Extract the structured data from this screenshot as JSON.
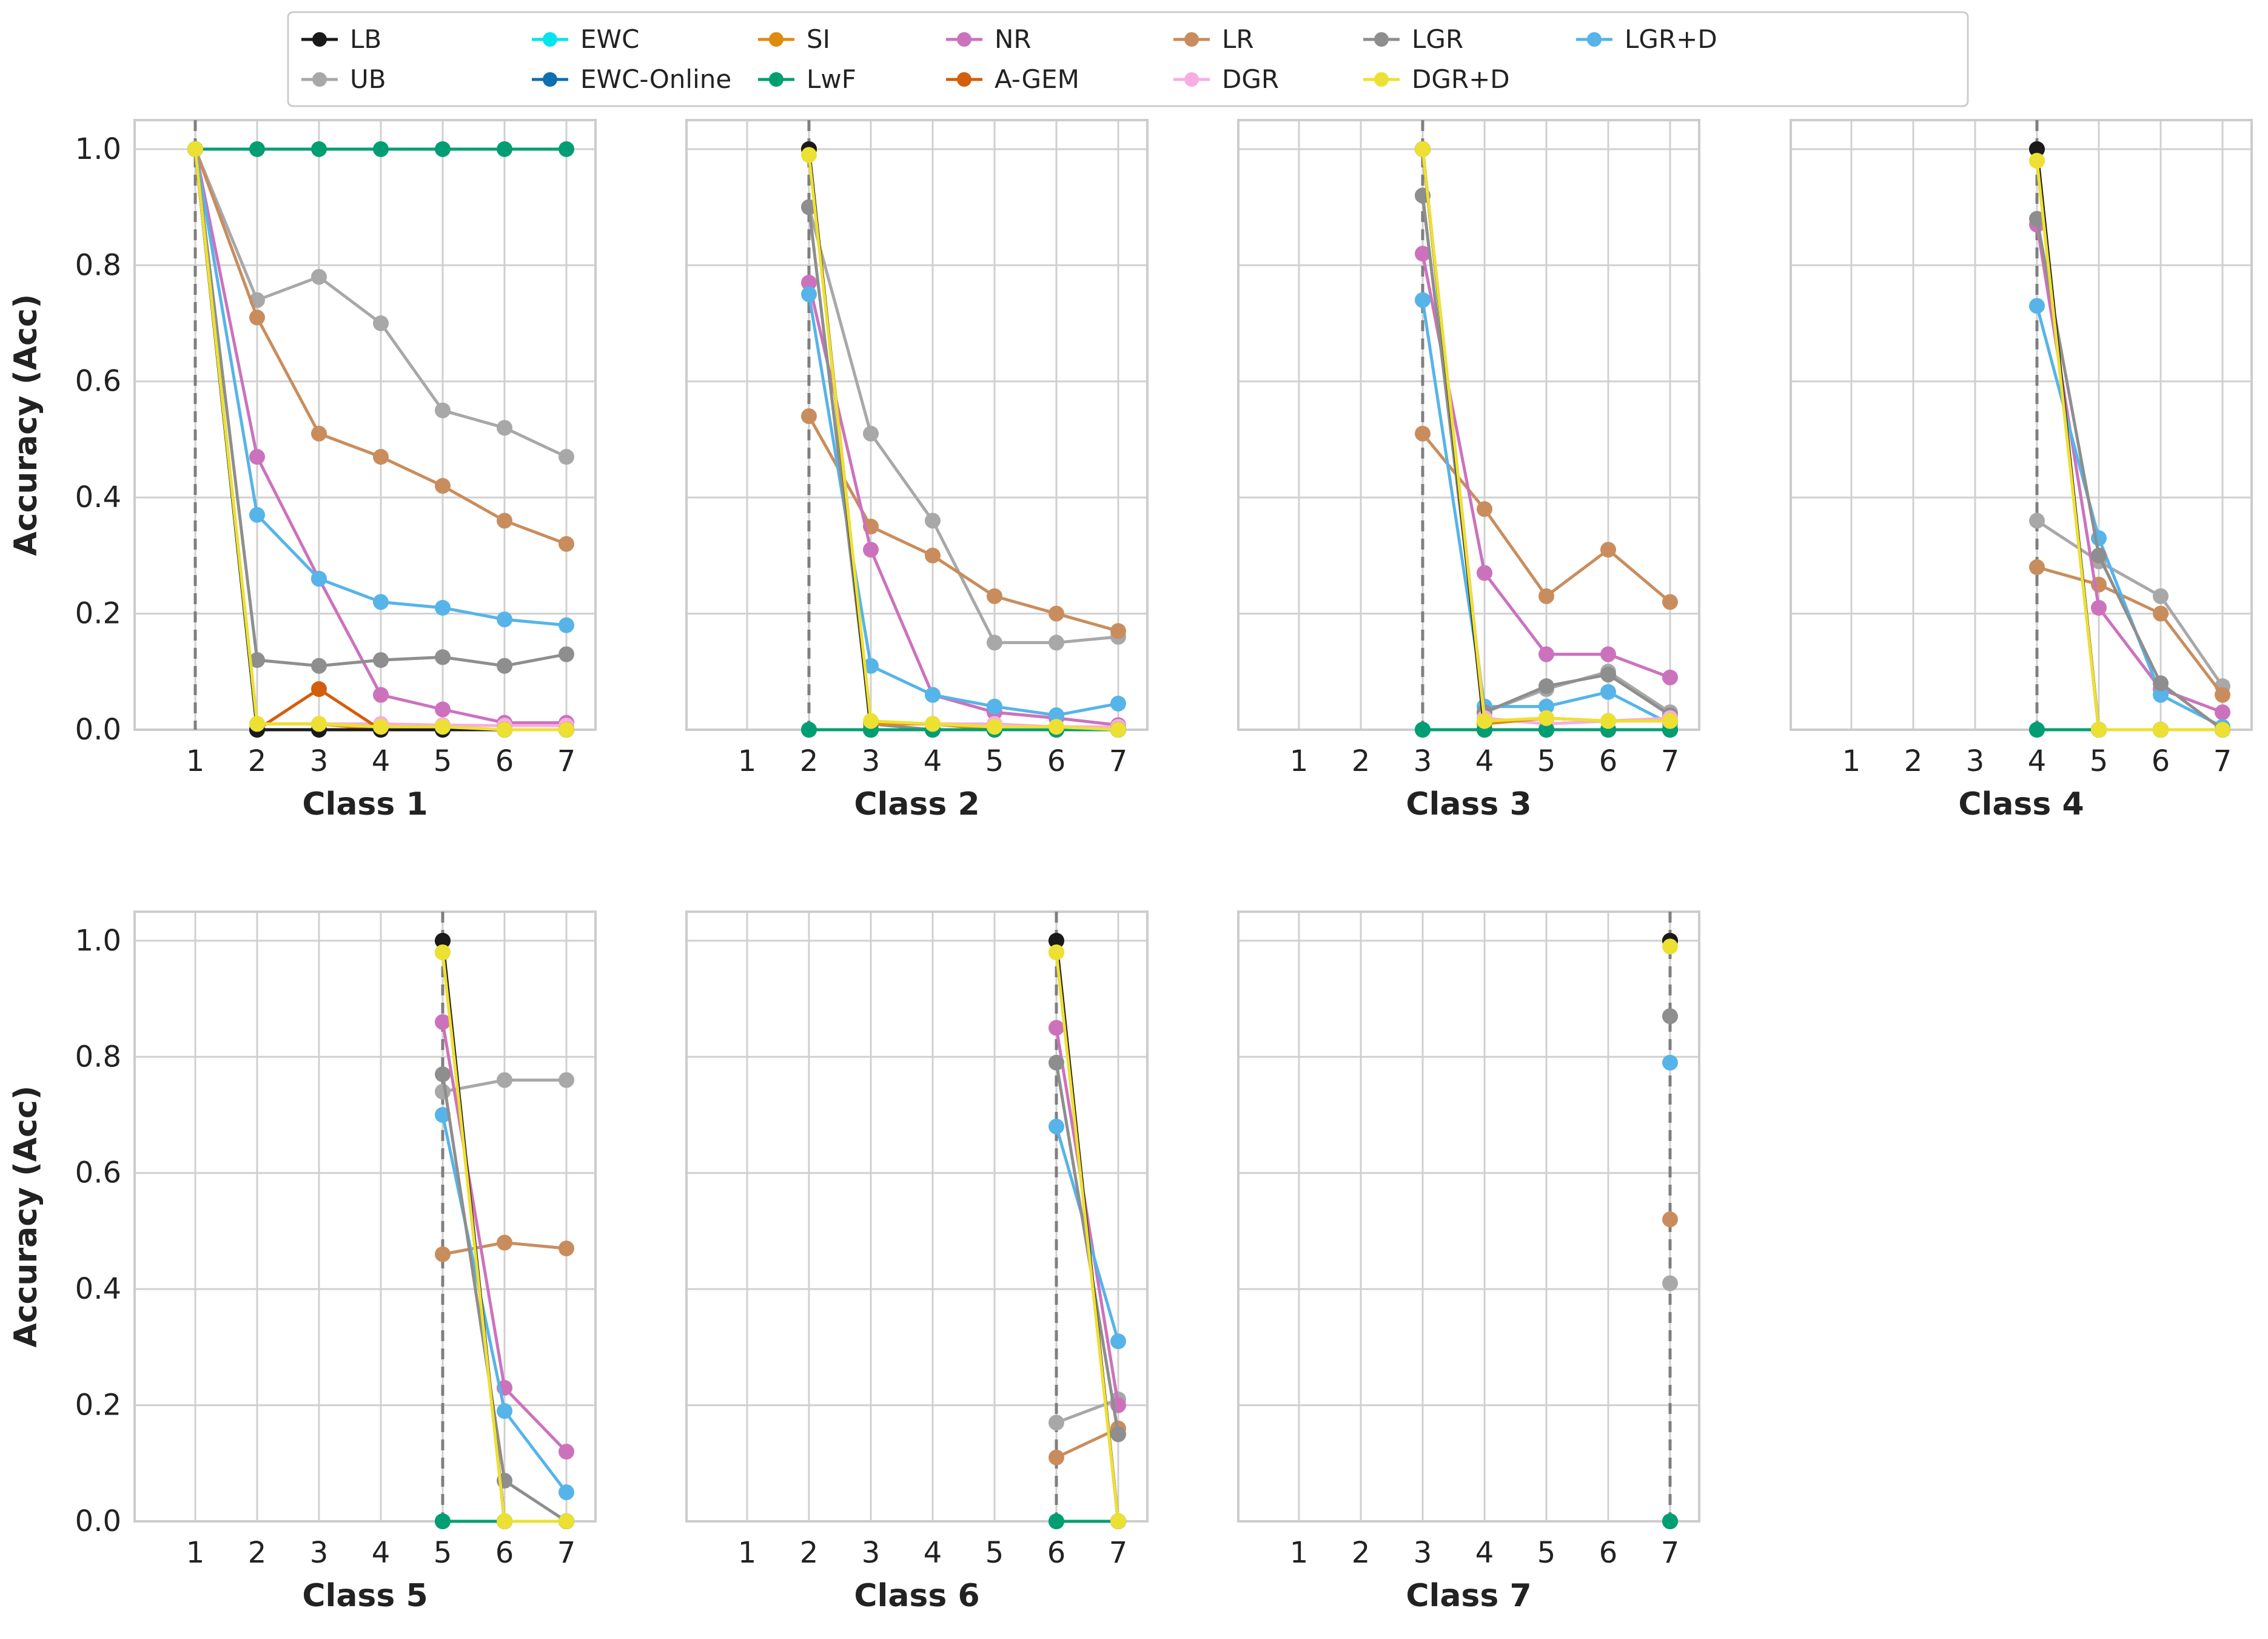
{
  "chart_data": {
    "type": "line",
    "x_ticks": [
      1,
      2,
      3,
      4,
      5,
      6,
      7
    ],
    "y_ticks": [
      "0.0",
      "0.2",
      "0.4",
      "0.6",
      "0.8",
      "1.0"
    ],
    "ylim": [
      0,
      1.05
    ],
    "ylabel": "Accuracy (Acc)",
    "grid": true,
    "legend_position": "top",
    "legend": [
      {
        "name": "LB",
        "color": "#1a1a1a"
      },
      {
        "name": "UB",
        "color": "#a8a8a8"
      },
      {
        "name": "EWC",
        "color": "#00e5ee"
      },
      {
        "name": "EWC-Online",
        "color": "#0f6fb0"
      },
      {
        "name": "SI",
        "color": "#de8c0f"
      },
      {
        "name": "LwF",
        "color": "#029e73"
      },
      {
        "name": "NR",
        "color": "#cc72bd"
      },
      {
        "name": "A-GEM",
        "color": "#d35e0d"
      },
      {
        "name": "LR",
        "color": "#c98d5d"
      },
      {
        "name": "DGR",
        "color": "#f6aee2"
      },
      {
        "name": "LGR",
        "color": "#8e8e8e"
      },
      {
        "name": "DGR+D",
        "color": "#ece133"
      },
      {
        "name": "LGR+D",
        "color": "#56b4e9"
      }
    ],
    "panels": [
      {
        "xlabel": "Class 1",
        "start": 1,
        "series": {
          "LB": [
            1.0,
            0.0,
            0.0,
            0.0,
            0.0,
            0.0,
            0.0
          ],
          "UB": [
            1.0,
            0.74,
            0.78,
            0.7,
            0.55,
            0.52,
            0.47
          ],
          "EWC": [
            1.0,
            0.0,
            0.0,
            0.0,
            0.0,
            0.0,
            0.0
          ],
          "EWC-Online": [
            1.0,
            0.0,
            0.0,
            0.0,
            0.0,
            0.0,
            0.0
          ],
          "SI": [
            1.0,
            0.01,
            0.01,
            0.0,
            0.0,
            0.0,
            0.0
          ],
          "LwF": [
            1.0,
            1.0,
            1.0,
            1.0,
            1.0,
            1.0,
            1.0
          ],
          "NR": [
            1.0,
            0.47,
            0.26,
            0.06,
            0.035,
            0.012,
            0.012
          ],
          "A-GEM": [
            1.0,
            0.0,
            0.07,
            0.0,
            0.0,
            0.0,
            0.0
          ],
          "LR": [
            1.0,
            0.71,
            0.51,
            0.47,
            0.42,
            0.36,
            0.32
          ],
          "DGR": [
            1.0,
            0.01,
            0.01,
            0.01,
            0.008,
            0.007,
            0.007
          ],
          "LGR": [
            1.0,
            0.12,
            0.11,
            0.12,
            0.125,
            0.11,
            0.13
          ],
          "DGR+D": [
            1.0,
            0.01,
            0.01,
            0.005,
            0.005,
            0.0,
            0.0
          ],
          "LGR+D": [
            1.0,
            0.37,
            0.26,
            0.22,
            0.21,
            0.19,
            0.18
          ]
        }
      },
      {
        "xlabel": "Class 2",
        "start": 2,
        "series": {
          "LB": [
            1.0,
            0.0,
            0.0,
            0.0,
            0.0,
            0.0
          ],
          "UB": [
            0.9,
            0.51,
            0.36,
            0.15,
            0.15,
            0.16
          ],
          "EWC": [
            0.0,
            0.0,
            0.0,
            0.0,
            0.0,
            0.0
          ],
          "EWC-Online": [
            0.0,
            0.0,
            0.0,
            0.0,
            0.0,
            0.0
          ],
          "SI": [
            1.0,
            0.01,
            0.01,
            0.0,
            0.0,
            0.0
          ],
          "LwF": [
            0.0,
            0.0,
            0.0,
            0.0,
            0.0,
            0.0
          ],
          "NR": [
            0.77,
            0.31,
            0.06,
            0.03,
            0.02,
            0.008
          ],
          "A-GEM": [
            1.0,
            0.0,
            0.0,
            0.0,
            0.0,
            0.0
          ],
          "LR": [
            0.54,
            0.35,
            0.3,
            0.23,
            0.2,
            0.17
          ],
          "DGR": [
            1.0,
            0.01,
            0.01,
            0.01,
            0.005,
            0.005
          ],
          "LGR": [
            0.9,
            0.01,
            0.0,
            0.0,
            0.0,
            0.0
          ],
          "DGR+D": [
            0.99,
            0.015,
            0.01,
            0.005,
            0.005,
            0.0
          ],
          "LGR+D": [
            0.75,
            0.11,
            0.06,
            0.04,
            0.025,
            0.045
          ]
        }
      },
      {
        "xlabel": "Class 3",
        "start": 3,
        "series": {
          "LB": [
            1.0,
            0.0,
            0.0,
            0.0,
            0.0
          ],
          "UB": [
            0.92,
            0.03,
            0.07,
            0.1,
            0.03
          ],
          "EWC": [
            0.0,
            0.0,
            0.0,
            0.0,
            0.0
          ],
          "EWC-Online": [
            0.0,
            0.0,
            0.0,
            0.0,
            0.0
          ],
          "SI": [
            1.0,
            0.01,
            0.02,
            0.015,
            0.015
          ],
          "LwF": [
            0.0,
            0.0,
            0.0,
            0.0,
            0.0
          ],
          "NR": [
            0.82,
            0.27,
            0.13,
            0.13,
            0.09
          ],
          "A-GEM": [
            1.0,
            0.0,
            0.0,
            0.0,
            0.0
          ],
          "LR": [
            0.51,
            0.38,
            0.23,
            0.31,
            0.22
          ],
          "DGR": [
            1.0,
            0.02,
            0.01,
            0.015,
            0.02
          ],
          "LGR": [
            0.92,
            0.03,
            0.075,
            0.095,
            0.025
          ],
          "DGR+D": [
            1.0,
            0.015,
            0.02,
            0.015,
            0.015
          ],
          "LGR+D": [
            0.74,
            0.04,
            0.04,
            0.065,
            0.01
          ]
        }
      },
      {
        "xlabel": "Class 4",
        "start": 4,
        "series": {
          "LB": [
            1.0,
            0.0,
            0.0,
            0.0
          ],
          "UB": [
            0.36,
            0.29,
            0.23,
            0.075
          ],
          "EWC": [
            0.0,
            0.0,
            0.0,
            0.0
          ],
          "EWC-Online": [
            0.0,
            0.0,
            0.0,
            0.0
          ],
          "SI": [
            0.98,
            0.0,
            0.0,
            0.0
          ],
          "LwF": [
            0.0,
            0.0,
            0.0,
            0.0
          ],
          "NR": [
            0.87,
            0.21,
            0.07,
            0.03
          ],
          "A-GEM": [
            1.0,
            0.0,
            0.0,
            0.0
          ],
          "LR": [
            0.28,
            0.25,
            0.2,
            0.06
          ],
          "DGR": [
            1.0,
            0.0,
            0.0,
            0.0
          ],
          "LGR": [
            0.88,
            0.3,
            0.08,
            0.0
          ],
          "DGR+D": [
            0.98,
            0.0,
            0.0,
            0.0
          ],
          "LGR+D": [
            0.73,
            0.33,
            0.06,
            0.005
          ]
        }
      },
      {
        "xlabel": "Class 5",
        "start": 5,
        "series": {
          "LB": [
            1.0,
            0.0,
            0.0
          ],
          "UB": [
            0.74,
            0.76,
            0.76
          ],
          "EWC": [
            0.0,
            0.0,
            0.0
          ],
          "EWC-Online": [
            0.0,
            0.0,
            0.0
          ],
          "SI": [
            0.98,
            0.0,
            0.0
          ],
          "LwF": [
            0.0,
            0.0,
            0.0
          ],
          "NR": [
            0.86,
            0.23,
            0.12
          ],
          "A-GEM": [
            1.0,
            0.0,
            0.0
          ],
          "LR": [
            0.46,
            0.48,
            0.47
          ],
          "DGR": [
            1.0,
            0.0,
            0.0
          ],
          "LGR": [
            0.77,
            0.07,
            0.0
          ],
          "DGR+D": [
            0.98,
            0.0,
            0.0
          ],
          "LGR+D": [
            0.7,
            0.19,
            0.05
          ]
        }
      },
      {
        "xlabel": "Class 6",
        "start": 6,
        "series": {
          "LB": [
            1.0,
            0.0
          ],
          "UB": [
            0.17,
            0.21
          ],
          "EWC": [
            0.0,
            0.0
          ],
          "EWC-Online": [
            0.0,
            0.0
          ],
          "SI": [
            0.98,
            0.0
          ],
          "LwF": [
            0.0,
            0.0
          ],
          "NR": [
            0.85,
            0.2
          ],
          "A-GEM": [
            1.0,
            0.0
          ],
          "LR": [
            0.11,
            0.16
          ],
          "DGR": [
            1.0,
            0.0
          ],
          "LGR": [
            0.79,
            0.15
          ],
          "DGR+D": [
            0.98,
            0.0
          ],
          "LGR+D": [
            0.68,
            0.31
          ]
        }
      },
      {
        "xlabel": "Class 7",
        "start": 7,
        "series": {
          "LB": [
            1.0
          ],
          "UB": [
            0.41
          ],
          "EWC": [
            0.0
          ],
          "EWC-Online": [
            0.0
          ],
          "SI": [
            1.0
          ],
          "LwF": [
            0.0
          ],
          "NR": [
            0.87
          ],
          "A-GEM": [
            1.0
          ],
          "LR": [
            0.52
          ],
          "DGR": [
            1.0
          ],
          "LGR": [
            0.87
          ],
          "DGR+D": [
            0.99
          ],
          "LGR+D": [
            0.79
          ]
        }
      }
    ]
  }
}
